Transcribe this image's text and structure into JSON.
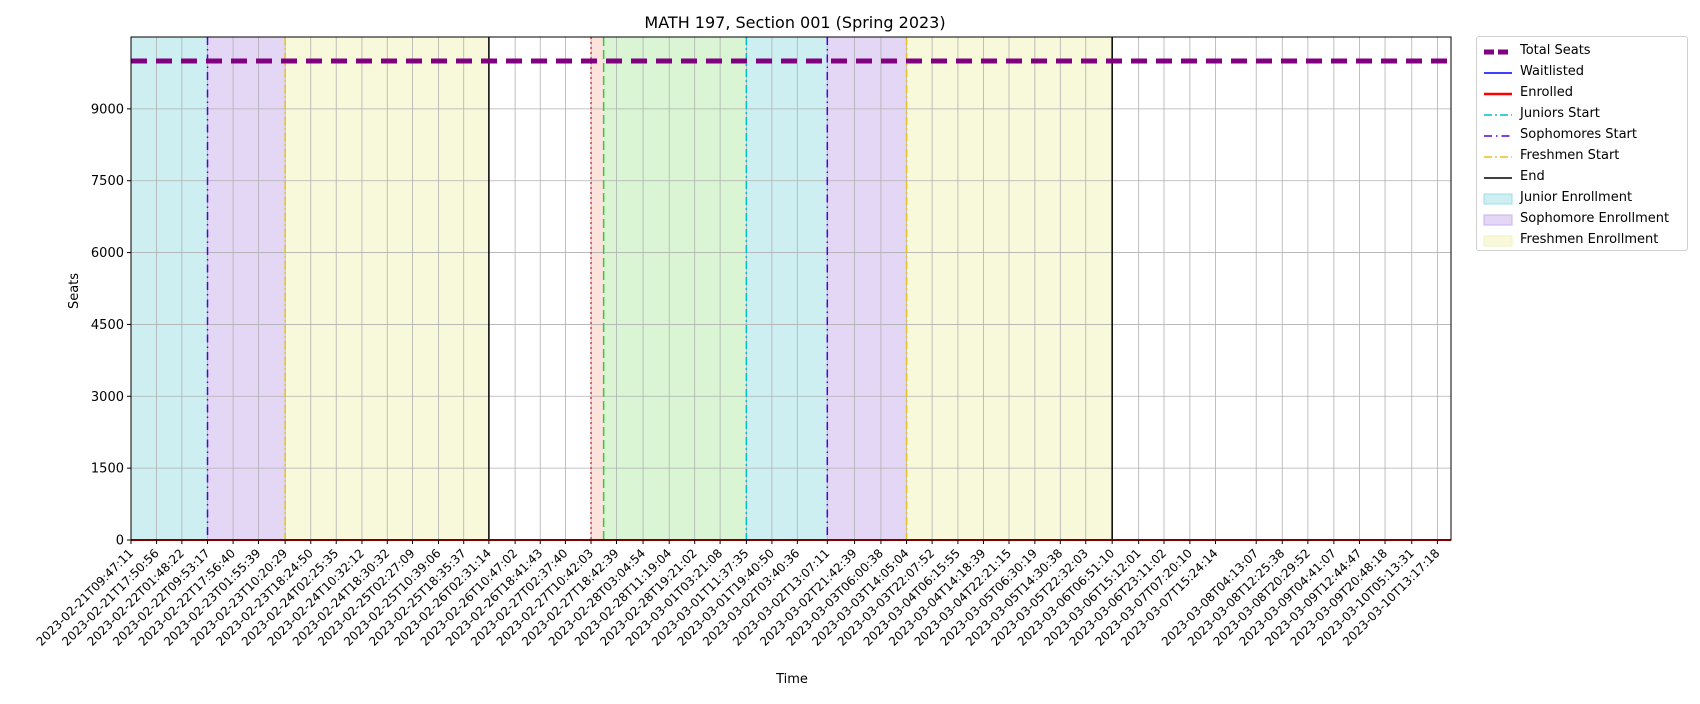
{
  "chart_data": {
    "type": "line",
    "title": "MATH 197, Section 001 (Spring 2023)",
    "xlabel": "Time",
    "ylabel": "Seats",
    "ylim": [
      0,
      10500
    ],
    "yticks": [
      0,
      1500,
      3000,
      4500,
      6000,
      7500,
      9000
    ],
    "grid": true,
    "legend_position": "outside-right",
    "x_start": "2023-02-21T09:47:11",
    "x_end": "2023-03-10T17:35:00",
    "xtick_labels": [
      "2023-02-21T09:47:11",
      "2023-02-21T17:50:56",
      "2023-02-22T01:48:22",
      "2023-02-22T09:53:17",
      "2023-02-22T17:56:40",
      "2023-02-23T01:55:39",
      "2023-02-23T10:20:29",
      "2023-02-23T18:24:50",
      "2023-02-24T02:25:35",
      "2023-02-24T10:32:12",
      "2023-02-24T18:30:32",
      "2023-02-25T02:27:09",
      "2023-02-25T10:39:06",
      "2023-02-25T18:35:37",
      "2023-02-26T02:31:14",
      "2023-02-26T10:47:02",
      "2023-02-26T18:41:43",
      "2023-02-27T02:37:40",
      "2023-02-27T10:42:03",
      "2023-02-27T18:42:39",
      "2023-02-28T03:04:54",
      "2023-02-28T11:19:04",
      "2023-02-28T19:21:02",
      "2023-03-01T03:21:08",
      "2023-03-01T11:37:35",
      "2023-03-01T19:40:50",
      "2023-03-02T03:40:36",
      "2023-03-02T13:07:11",
      "2023-03-02T21:42:39",
      "2023-03-03T06:00:38",
      "2023-03-03T14:05:04",
      "2023-03-03T22:07:52",
      "2023-03-04T06:15:55",
      "2023-03-04T14:18:39",
      "2023-03-04T22:21:15",
      "2023-03-05T06:30:19",
      "2023-03-05T14:30:38",
      "2023-03-05T22:32:03",
      "2023-03-06T06:51:10",
      "2023-03-06T15:12:01",
      "2023-03-06T23:11:02",
      "2023-03-07T07:20:10",
      "2023-03-07T15:24:14",
      "2023-03-08T04:13:07",
      "2023-03-08T12:25:38",
      "2023-03-08T20:29:52",
      "2023-03-09T04:41:07",
      "2023-03-09T12:44:47",
      "2023-03-09T20:48:18",
      "2023-03-10T05:13:31",
      "2023-03-10T13:17:18"
    ],
    "series": [
      {
        "name": "Total Seats",
        "color": "#800080",
        "style": "dashed",
        "values": [
          10000,
          10000
        ]
      },
      {
        "name": "Waitlisted",
        "color": "#0000ff",
        "style": "solid",
        "values": [
          0,
          0
        ]
      },
      {
        "name": "Enrolled",
        "color": "#ff0000",
        "style": "solid",
        "values": [
          0,
          0
        ]
      }
    ],
    "shaded_periods": [
      {
        "label": "Junior Enrollment",
        "color": "#9edfe6",
        "start": "2023-02-21T09:47:11",
        "end": "2023-02-22T09:53:17"
      },
      {
        "label": "Sophomore Enrollment",
        "color": "#c9b0ee",
        "start": "2023-02-22T09:53:17",
        "end": "2023-02-23T10:20:29"
      },
      {
        "label": "Freshmen Enrollment",
        "color": "#f2f3b8",
        "start": "2023-02-23T10:20:29",
        "end": "2023-02-26T02:31:14"
      },
      {
        "label": "",
        "color": "#f9c8b8",
        "start": "2023-02-27T10:42:03",
        "end": "2023-02-27T14:40:00"
      },
      {
        "label": "",
        "color": "#b3ecaa",
        "start": "2023-02-27T14:40:00",
        "end": "2023-03-01T11:37:35"
      },
      {
        "label": "",
        "color": "#9edfe6",
        "start": "2023-03-01T11:37:35",
        "end": "2023-03-02T13:07:11"
      },
      {
        "label": "",
        "color": "#c9b0ee",
        "start": "2023-03-02T13:07:11",
        "end": "2023-03-03T14:05:04"
      },
      {
        "label": "",
        "color": "#f2f3b8",
        "start": "2023-03-03T14:05:04",
        "end": "2023-03-06T06:51:10"
      }
    ],
    "vertical_lines": [
      {
        "name": "Sophomores Start",
        "color": "#5500dd",
        "style": "dashdot-sparse",
        "x": "2023-02-22T09:53:17"
      },
      {
        "name": "Freshmen Start",
        "color": "#e6c020",
        "style": "dashdot",
        "x": "2023-02-23T10:20:29"
      },
      {
        "name": "End",
        "color": "#000000",
        "style": "solid",
        "x": "2023-02-26T02:31:14"
      },
      {
        "name": "",
        "color": "#d04040",
        "style": "dotted",
        "x": "2023-02-27T10:42:03"
      },
      {
        "name": "",
        "color": "#33cc33",
        "style": "dashed",
        "x": "2023-02-27T14:40:00"
      },
      {
        "name": "Juniors Start",
        "color": "#00bcd4",
        "style": "dashdot",
        "x": "2023-03-01T11:37:35"
      },
      {
        "name": "Sophomores Start",
        "color": "#5500dd",
        "style": "dashdot-sparse",
        "x": "2023-03-02T13:07:11"
      },
      {
        "name": "Freshmen Start",
        "color": "#e6c020",
        "style": "dashdot",
        "x": "2023-03-03T14:05:04"
      },
      {
        "name": "End",
        "color": "#000000",
        "style": "solid",
        "x": "2023-03-06T06:51:10"
      }
    ]
  },
  "legend": [
    {
      "label": "Total Seats",
      "kind": "line",
      "color": "#800080",
      "style": "thick-dashed"
    },
    {
      "label": "Waitlisted",
      "kind": "line",
      "color": "#0000ff",
      "style": "solid"
    },
    {
      "label": "Enrolled",
      "kind": "line",
      "color": "#ff0000",
      "style": "solid-thick"
    },
    {
      "label": "Juniors Start",
      "kind": "line",
      "color": "#00bcd4",
      "style": "dashdot"
    },
    {
      "label": "Sophomores Start",
      "kind": "line",
      "color": "#5500dd",
      "style": "dashdot-sparse"
    },
    {
      "label": "Freshmen Start",
      "kind": "line",
      "color": "#e6c020",
      "style": "dashdot"
    },
    {
      "label": "End",
      "kind": "line",
      "color": "#000000",
      "style": "solid"
    },
    {
      "label": "Junior Enrollment",
      "kind": "patch",
      "color": "#9edfe6"
    },
    {
      "label": "Sophomore Enrollment",
      "kind": "patch",
      "color": "#c9b0ee"
    },
    {
      "label": "Freshmen Enrollment",
      "kind": "patch",
      "color": "#f2f3b8"
    }
  ]
}
